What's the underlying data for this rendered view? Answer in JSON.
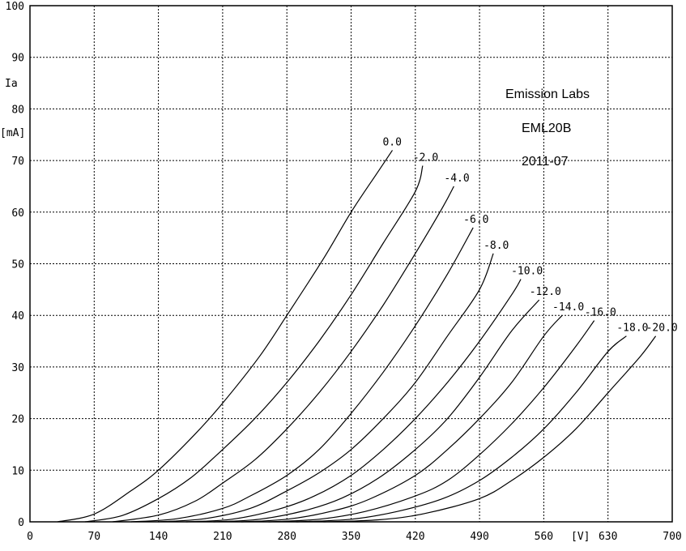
{
  "chart_data": {
    "type": "line",
    "title": "",
    "xlabel": "[V]",
    "ylabel": "Ia",
    "ylabel_unit": "[mA]",
    "xlim": [
      0,
      700
    ],
    "ylim": [
      0,
      100
    ],
    "grid": true,
    "x_ticks": [
      0,
      70,
      140,
      210,
      280,
      350,
      420,
      490,
      560,
      630,
      700
    ],
    "x_tick_labels": [
      "0",
      "70",
      "140",
      "210",
      "280",
      "350",
      "420",
      "490",
      "560",
      "630",
      "700"
    ],
    "y_ticks": [
      0,
      10,
      20,
      30,
      40,
      50,
      60,
      70,
      80,
      90,
      100
    ],
    "y_tick_labels": [
      "0",
      "10",
      "20",
      "30",
      "40",
      "50",
      "60",
      "70",
      "80",
      "90",
      "100"
    ],
    "annotations": [
      "Emission Labs",
      "EML20B",
      "2011-07"
    ],
    "series": [
      {
        "name": "0.0",
        "x": [
          30,
          70,
          110,
          140,
          180,
          210,
          250,
          280,
          320,
          350,
          380,
          395
        ],
        "y": [
          0,
          1.5,
          6,
          10,
          17,
          23,
          32,
          40,
          51,
          60,
          68,
          72
        ]
      },
      {
        "name": "-2.0",
        "x": [
          60,
          100,
          140,
          175,
          210,
          245,
          280,
          315,
          350,
          385,
          420,
          428
        ],
        "y": [
          0,
          1.2,
          4.5,
          8.5,
          14,
          20,
          27,
          35,
          44,
          54,
          64,
          69
        ]
      },
      {
        "name": "-4.0",
        "x": [
          90,
          140,
          180,
          210,
          245,
          280,
          315,
          350,
          385,
          420,
          450,
          462
        ],
        "y": [
          0,
          1.3,
          4,
          7.5,
          12,
          18,
          25,
          33,
          42,
          52,
          61,
          65
        ]
      },
      {
        "name": "-6.0",
        "x": [
          110,
          160,
          210,
          240,
          280,
          315,
          350,
          385,
          420,
          455,
          483
        ],
        "y": [
          0,
          0.6,
          2.6,
          5,
          9,
          14,
          21,
          29,
          38,
          48,
          57
        ]
      },
      {
        "name": "-8.0",
        "x": [
          140,
          190,
          240,
          280,
          315,
          350,
          385,
          420,
          455,
          490,
          505
        ],
        "y": [
          0,
          0.6,
          2.6,
          6,
          9.5,
          14,
          20,
          27,
          36,
          45,
          52
        ]
      },
      {
        "name": "-10.0",
        "x": [
          170,
          220,
          270,
          310,
          350,
          385,
          420,
          455,
          490,
          525,
          535
        ],
        "y": [
          0,
          0.5,
          2.4,
          5,
          9,
          14,
          20,
          27,
          35,
          44,
          47
        ]
      },
      {
        "name": "-12.0",
        "x": [
          200,
          250,
          300,
          340,
          380,
          420,
          455,
          490,
          525,
          555
        ],
        "y": [
          0,
          0.5,
          2.2,
          4.6,
          8.5,
          14,
          20,
          28,
          37,
          43
        ]
      },
      {
        "name": "-14.0",
        "x": [
          230,
          280,
          330,
          370,
          420,
          455,
          490,
          525,
          560,
          580
        ],
        "y": [
          0,
          0.5,
          2.1,
          4.4,
          9,
          14,
          20,
          27,
          36,
          40
        ]
      },
      {
        "name": "-16.0",
        "x": [
          260,
          315,
          365,
          420,
          455,
          490,
          525,
          560,
          595,
          615
        ],
        "y": [
          0,
          0.5,
          2,
          5,
          8,
          13,
          19,
          26,
          34,
          39
        ]
      },
      {
        "name": "-18.0",
        "x": [
          290,
          350,
          400,
          450,
          490,
          525,
          560,
          595,
          630,
          650
        ],
        "y": [
          0,
          0.5,
          2,
          4.5,
          8,
          12.5,
          18,
          25,
          33,
          36
        ]
      },
      {
        "name": "-20.0",
        "x": [
          320,
          380,
          430,
          490,
          525,
          560,
          595,
          630,
          665,
          682
        ],
        "y": [
          0,
          0.4,
          1.6,
          4.5,
          8,
          12.5,
          18,
          25,
          32,
          36
        ]
      }
    ]
  }
}
